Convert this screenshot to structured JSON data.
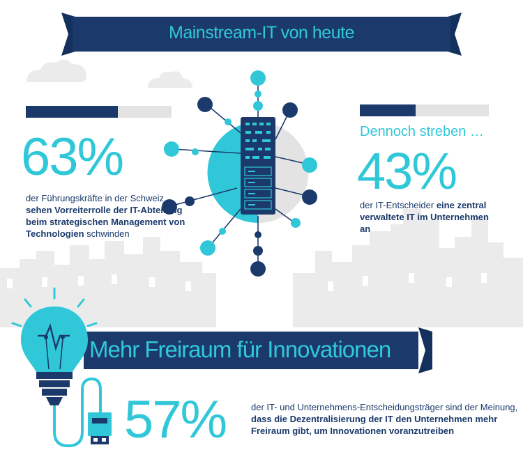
{
  "top_banner": {
    "title": "Mainstream-IT von heute"
  },
  "left_stat": {
    "progress": 0.63,
    "percent": "63%",
    "text_plain": "der Führungskräfte in der Schweiz ",
    "text_bold": "sehen Vorreiterrolle der IT-Abteilung beim strategischen Management von Technologien",
    "text_end": " schwinden"
  },
  "right_stat": {
    "progress": 0.43,
    "heading": "Dennoch streben …",
    "percent": "43%",
    "text_plain": "der IT-Entscheider ",
    "text_bold": "eine zentral verwaltete IT im Unternehmen an"
  },
  "bottom_banner": {
    "title": "Mehr Freiraum für Innovationen"
  },
  "bottom_stat": {
    "percent": "57%",
    "text_plain": "der IT- und Unternehmens-Entscheidungsträger sind der Meinung, ",
    "text_bold": "dass die Dezentralisierung der IT den Unternehmen mehr Freiraum gibt, um Innovationen voranzutreiben"
  },
  "colors": {
    "navy": "#1b3a6b",
    "cyan": "#30c8d8",
    "grey": "#e3e3e3"
  }
}
